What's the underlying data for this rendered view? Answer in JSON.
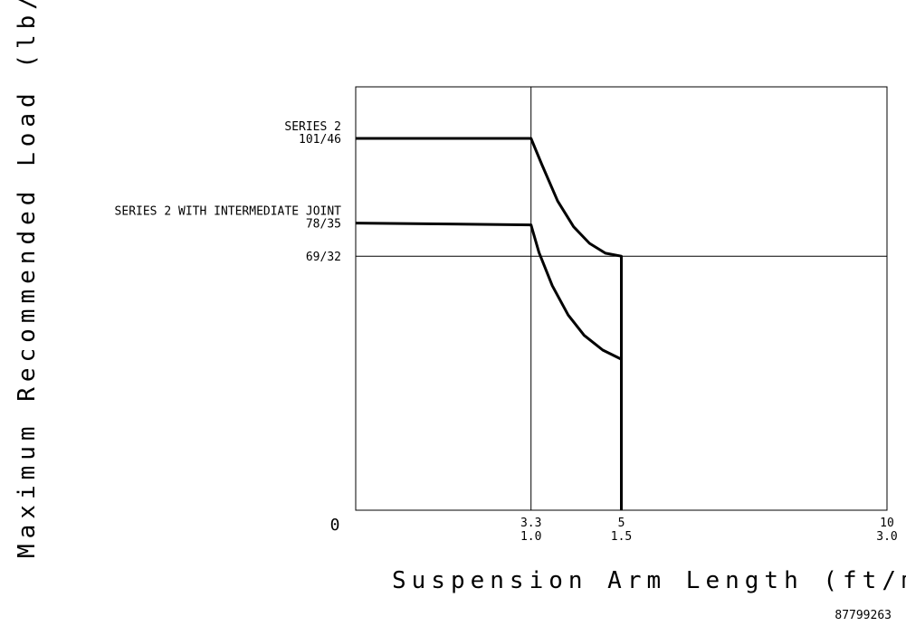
{
  "chart_data": {
    "type": "line",
    "xlabel": "Suspension Arm Length (ft/m)",
    "ylabel": "Maximum Recommended Load (lb/kg)",
    "ylim": [
      0,
      115
    ],
    "xlim": [
      0,
      10
    ],
    "origin_label": "0",
    "x_ticks": [
      {
        "value": 3.3,
        "top": "3.3",
        "bottom": "1.0"
      },
      {
        "value": 5,
        "top": "5",
        "bottom": "1.5"
      },
      {
        "value": 10,
        "top": "10",
        "bottom": "3.0"
      }
    ],
    "y_labels": [
      {
        "value": 101,
        "name": "SERIES 2",
        "value_label": "101/46"
      },
      {
        "value": 78,
        "name": "SERIES 2 WITH INTERMEDIATE JOINT",
        "value_label": "78/35"
      },
      {
        "value": 69,
        "name": "",
        "value_label": "69/32"
      }
    ],
    "reference_lines": {
      "x": 3.3,
      "y": 69
    },
    "series": [
      {
        "name": "SERIES 2",
        "points": [
          [
            0,
            101
          ],
          [
            3.3,
            101
          ],
          [
            3.5,
            94
          ],
          [
            3.8,
            84
          ],
          [
            4.1,
            77
          ],
          [
            4.4,
            72.5
          ],
          [
            4.7,
            69.8
          ],
          [
            5,
            69
          ],
          [
            5,
            0
          ]
        ]
      },
      {
        "name": "SERIES 2 WITH INTERMEDIATE JOINT",
        "points": [
          [
            0,
            78
          ],
          [
            3.3,
            77.5
          ],
          [
            3.45,
            70
          ],
          [
            3.7,
            61
          ],
          [
            4.0,
            53
          ],
          [
            4.3,
            47.5
          ],
          [
            4.65,
            43.5
          ],
          [
            5,
            41
          ],
          [
            5,
            0
          ]
        ]
      }
    ]
  },
  "footer": {
    "code": "87799263"
  }
}
